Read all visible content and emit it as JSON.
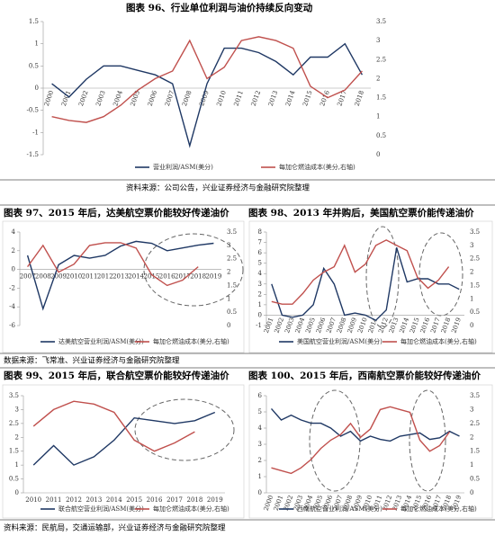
{
  "chart_data": [
    {
      "type": "line",
      "title": "图表 96、行业单位利润与油价持续反向变动",
      "categories": [
        "2000",
        "2001",
        "2002",
        "2003",
        "2004",
        "2005",
        "2006",
        "2007",
        "2008",
        "2009",
        "2010",
        "2011",
        "2012",
        "2013",
        "2014",
        "2015",
        "2016",
        "2017",
        "2018"
      ],
      "ylim": [
        -1.5,
        1.5
      ],
      "yticks": [
        -1.5,
        -1,
        -0.5,
        0,
        0.5,
        1,
        1.5
      ],
      "y2lim": [
        0,
        3.5
      ],
      "y2ticks": [
        0,
        0.5,
        1,
        1.5,
        2,
        2.5,
        3,
        3.5
      ],
      "series": [
        {
          "name": "营业利润/ASM(美分)",
          "color": "#1f3864",
          "values": [
            0.1,
            -0.2,
            0.2,
            0.5,
            0.5,
            0.4,
            0.3,
            0.1,
            -1.3,
            0.1,
            0.9,
            0.9,
            0.8,
            0.6,
            0.3,
            0.7,
            0.7,
            1.0,
            0.3
          ]
        },
        {
          "name": "每加仑燃油成本(美分,右轴)",
          "color": "#c0504d",
          "axis": "y2",
          "values": [
            1.0,
            0.9,
            0.85,
            1.0,
            1.3,
            1.7,
            2.0,
            2.2,
            3.0,
            2.0,
            2.3,
            3.0,
            3.1,
            3.0,
            2.8,
            1.8,
            1.5,
            1.7,
            2.2
          ]
        }
      ]
    },
    {
      "type": "line",
      "title": "图表 97、2015 年后，达美航空票价能较好传递油价",
      "categories": [
        "2007",
        "2008",
        "2009",
        "2010",
        "2011",
        "2012",
        "2013",
        "2014",
        "2015",
        "2016",
        "2017",
        "2018",
        "2019"
      ],
      "ylim": [
        -6,
        4
      ],
      "yticks": [
        -6,
        -4,
        -2,
        0,
        2,
        4
      ],
      "y2lim": [
        0,
        3.5
      ],
      "y2ticks": [
        0,
        0.5,
        1,
        1.5,
        2,
        2.5,
        3,
        3.5
      ],
      "series": [
        {
          "name": "达美航空营业利润/ASM(美分)",
          "color": "#1f3864",
          "values": [
            1.5,
            -4.2,
            0.5,
            1.5,
            1.2,
            1.5,
            2.5,
            3.0,
            2.8,
            2.0,
            2.3,
            2.6,
            2.8
          ]
        },
        {
          "name": "每加仑燃油成本(美分,右轴)",
          "color": "#c0504d",
          "axis": "y2",
          "values": [
            2.2,
            3.0,
            2.0,
            2.3,
            3.0,
            3.1,
            3.1,
            2.9,
            1.9,
            1.5,
            1.7,
            2.2,
            null
          ]
        }
      ]
    },
    {
      "type": "line",
      "title": "图表 98、2013 年并购后，美国航空票价能传递油价",
      "categories": [
        "2001",
        "2002",
        "2003",
        "2004",
        "2005",
        "2006",
        "2007",
        "2008",
        "2009",
        "2010",
        "2011",
        "2012",
        "2013",
        "2014",
        "2015",
        "2016",
        "2017",
        "2018",
        "2019"
      ],
      "ylim": [
        -1,
        8
      ],
      "yticks": [
        -1,
        0,
        1,
        2,
        3,
        4,
        5,
        6,
        7,
        8
      ],
      "y2lim": [
        0,
        3.5
      ],
      "y2ticks": [
        0,
        0.5,
        1,
        1.5,
        2,
        2.5,
        3,
        3.5
      ],
      "series": [
        {
          "name": "美国航空营业利润/ASM(美分)",
          "color": "#1f3864",
          "values": [
            3,
            0,
            -0.2,
            0,
            1,
            4.5,
            3,
            0,
            0.2,
            0,
            -0.5,
            0.5,
            6.5,
            3.2,
            3.5,
            3.5,
            3,
            3,
            2.5
          ]
        },
        {
          "name": "每加仑燃油成本(美分,右轴)",
          "color": "#c0504d",
          "axis": "y2",
          "values": [
            0.9,
            0.8,
            0.8,
            1.2,
            1.7,
            2.0,
            2.2,
            3.0,
            2.0,
            2.3,
            3.0,
            3.2,
            3.0,
            2.8,
            1.8,
            1.4,
            1.7,
            2.2,
            null
          ]
        }
      ]
    },
    {
      "type": "line",
      "title": "图表 99、2015 年后，联合航空票价能较好传递油价",
      "categories": [
        "2010",
        "2011",
        "2012",
        "2013",
        "2014",
        "2015",
        "2016",
        "2017",
        "2018",
        "2019"
      ],
      "ylim": [
        0,
        3.5
      ],
      "yticks": [
        0,
        0.5,
        1,
        1.5,
        2,
        2.5,
        3,
        3.5
      ],
      "series": [
        {
          "name": "联合航空营业利润/ASM(美分)",
          "color": "#1f3864",
          "values": [
            1.0,
            1.7,
            1.0,
            1.3,
            1.9,
            2.7,
            2.6,
            2.5,
            2.6,
            2.9
          ]
        },
        {
          "name": "每加仑燃油成本(美分,右轴)",
          "color": "#c0504d",
          "values": [
            2.4,
            3.0,
            3.3,
            3.2,
            2.9,
            1.9,
            1.5,
            1.8,
            2.2,
            null
          ]
        }
      ]
    },
    {
      "type": "line",
      "title": "图表 100、2015 年后，西南航空票价能较好传递油价",
      "categories": [
        "2000",
        "2001",
        "2002",
        "2003",
        "2004",
        "2005",
        "2006",
        "2007",
        "2008",
        "2009",
        "2010",
        "2011",
        "2012",
        "2013",
        "2014",
        "2015",
        "2016",
        "2017",
        "2018",
        "2019"
      ],
      "ylim": [
        0,
        6
      ],
      "yticks": [
        0,
        1,
        2,
        3,
        4,
        5,
        6
      ],
      "y2lim": [
        0,
        3.5
      ],
      "y2ticks": [
        0,
        0.5,
        1,
        1.5,
        2,
        2.5,
        3,
        3.5
      ],
      "series": [
        {
          "name": "西南航空营业利润/ASM(美分)",
          "color": "#1f3864",
          "values": [
            5.2,
            4.5,
            4.8,
            4.5,
            4.3,
            4.3,
            4.0,
            3.5,
            3.8,
            3.2,
            3.5,
            3.3,
            3.2,
            3.5,
            3.6,
            3.7,
            3.3,
            3.4,
            3.8,
            3.5
          ]
        },
        {
          "name": "每加仑燃油成本(美分,右轴)",
          "color": "#c0504d",
          "axis": "y2",
          "values": [
            0.9,
            0.8,
            0.7,
            0.9,
            1.2,
            1.6,
            1.9,
            2.1,
            2.5,
            2.0,
            2.3,
            3.0,
            3.1,
            3.0,
            2.9,
            1.9,
            1.5,
            1.7,
            2.2,
            null
          ]
        }
      ]
    }
  ],
  "sources": [
    "资料来源：公司公告，兴业证券经济与金融研究院整理",
    "数据来源：飞常准、兴业证券经济与金融研究院整理",
    "资料来源：民航局，交通运输部，兴业证券经济与金融研究院整理"
  ]
}
